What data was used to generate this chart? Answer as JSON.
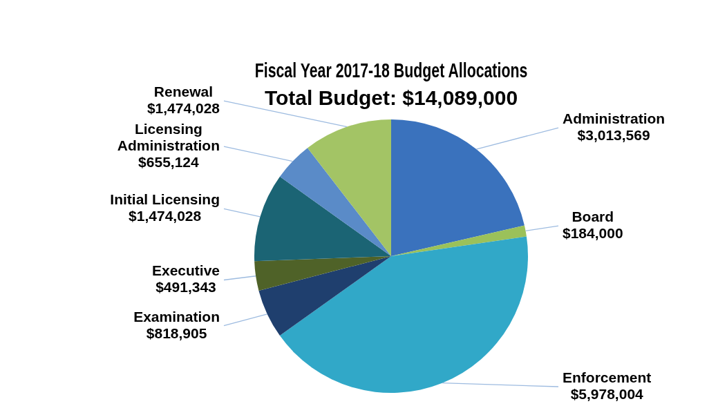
{
  "chart_data": {
    "type": "pie",
    "title": "Fiscal Year 2017-18 Budget Allocations",
    "subtitle": "Total Budget: $14,089,000",
    "categories": [
      "Administration",
      "Board",
      "Enforcement",
      "Examination",
      "Executive",
      "Initial Licensing",
      "Licensing Administration",
      "Renewal"
    ],
    "values": [
      3013569,
      184000,
      5978004,
      818905,
      491343,
      1474028,
      655124,
      1474028
    ],
    "value_labels": [
      "$3,013,569",
      "$184,000",
      "$5,978,004",
      "$818,905",
      "$491,343",
      "$1,474,028",
      "$655,124",
      "$1,474,028"
    ],
    "colors": [
      "#3a72bd",
      "#9bc15a",
      "#31a8c8",
      "#1f3f6e",
      "#4f6228",
      "#1b6474",
      "#5a8bc8",
      "#a3c465"
    ],
    "legend": false
  }
}
